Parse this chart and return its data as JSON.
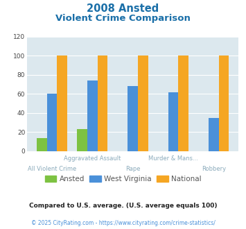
{
  "title_line1": "2008 Ansted",
  "title_line2": "Violent Crime Comparison",
  "categories": [
    "All Violent Crime",
    "Aggravated Assault",
    "Rape",
    "Murder & Mans...",
    "Robbery"
  ],
  "ansted": [
    14,
    23,
    0,
    0,
    0
  ],
  "west_virginia": [
    60,
    74,
    68,
    62,
    35
  ],
  "national": [
    100,
    100,
    100,
    100,
    100
  ],
  "color_ansted": "#7dc242",
  "color_wv": "#4a90d9",
  "color_national": "#f5a623",
  "ylim": [
    0,
    120
  ],
  "yticks": [
    0,
    20,
    40,
    60,
    80,
    100,
    120
  ],
  "footnote1": "Compared to U.S. average. (U.S. average equals 100)",
  "footnote2": "© 2025 CityRating.com - https://www.cityrating.com/crime-statistics/",
  "bg_color": "#dce8ee",
  "title_color": "#1a6fa8",
  "axis_label_color": "#8aaabb",
  "footnote1_color": "#222222",
  "footnote2_color": "#4a90d9",
  "legend_text_color": "#555555"
}
